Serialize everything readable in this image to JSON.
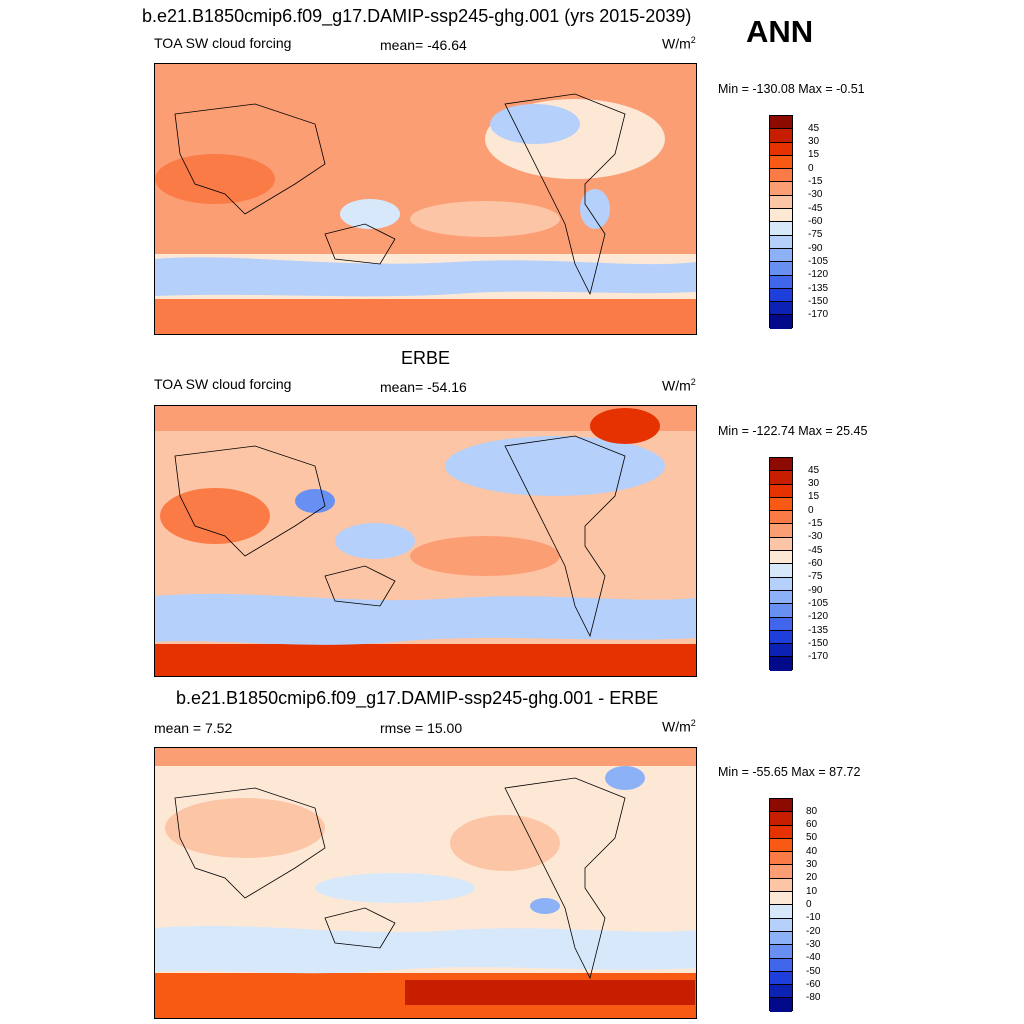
{
  "season": "ANN",
  "panels": [
    {
      "title": "b.e21.B1850cmip6.f09_g17.DAMIP-ssp245-ghg.001 (yrs 2015-2039)",
      "left_label": "TOA SW cloud forcing",
      "center_label": "mean= -46.64",
      "units": "W/m",
      "units_sup": "2",
      "minmax": "Min = -130.08 Max =  -0.51"
    },
    {
      "title": "ERBE",
      "left_label": "TOA SW cloud forcing",
      "center_label": "mean= -54.16",
      "units": "W/m",
      "units_sup": "2",
      "minmax": "Min = -122.74 Max =  25.45"
    },
    {
      "title": "b.e21.B1850cmip6.f09_g17.DAMIP-ssp245-ghg.001 - ERBE",
      "left_label": "mean =   7.52",
      "center_label": "rmse =  15.00",
      "units": "W/m",
      "units_sup": "2",
      "minmax": "Min = -55.65 Max =  87.72"
    }
  ],
  "colorbar_levels": [
    "45",
    "30",
    "15",
    "0",
    "-15",
    "-30",
    "-45",
    "-60",
    "-75",
    "-90",
    "-105",
    "-120",
    "-135",
    "-150",
    "-170"
  ],
  "diff_colorbar_levels": [
    "80",
    "60",
    "50",
    "40",
    "30",
    "20",
    "10",
    "0",
    "-10",
    "-20",
    "-30",
    "-40",
    "-50",
    "-60",
    "-80"
  ],
  "colorbar_colors": [
    "#8c0a00",
    "#c81e00",
    "#e63200",
    "#f85a14",
    "#fa7b46",
    "#fb9e74",
    "#fcc5a6",
    "#fde8d6",
    "#d8e8fb",
    "#b5d0fa",
    "#8cb1f7",
    "#6890f2",
    "#3f66eb",
    "#1f3fdc",
    "#0c22b4",
    "#020a8a"
  ]
}
